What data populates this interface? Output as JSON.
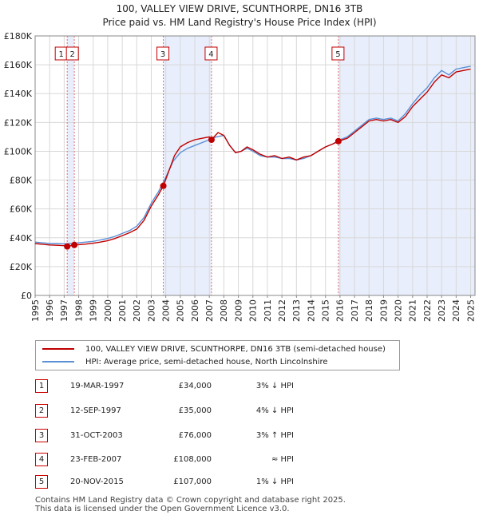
{
  "header": {
    "title_line1": "100, VALLEY VIEW DRIVE, SCUNTHORPE, DN16 3TB",
    "title_line2": "Price paid vs. HM Land Registry's House Price Index (HPI)"
  },
  "colors": {
    "property": "#c00000",
    "hpi": "#5b8fd6",
    "shade": "#e8eefb",
    "marker_line": "#e07070",
    "grid": "#d8d8d8"
  },
  "chart_data": {
    "type": "line",
    "title": "Price paid vs. HM Land Registry's House Price Index (HPI)",
    "xlabel": "",
    "ylabel": "",
    "xlim": [
      1995,
      2025.3
    ],
    "ylim": [
      0,
      180000
    ],
    "yticks": [
      0,
      20000,
      40000,
      60000,
      80000,
      100000,
      120000,
      140000,
      160000,
      180000
    ],
    "ytick_labels": [
      "£0",
      "£20K",
      "£40K",
      "£60K",
      "£80K",
      "£100K",
      "£120K",
      "£140K",
      "£160K",
      "£180K"
    ],
    "xticks": [
      1995,
      1996,
      1997,
      1998,
      1999,
      2000,
      2001,
      2002,
      2003,
      2004,
      2005,
      2006,
      2007,
      2008,
      2009,
      2010,
      2011,
      2012,
      2013,
      2014,
      2015,
      2016,
      2017,
      2018,
      2019,
      2020,
      2021,
      2022,
      2023,
      2024,
      2025
    ],
    "xtick_labels": [
      "1995",
      "1996",
      "1997",
      "1998",
      "1999",
      "2000",
      "2001",
      "2002",
      "2003",
      "2004",
      "2005",
      "2006",
      "2007",
      "2008",
      "2009",
      "2010",
      "2011",
      "2012",
      "2013",
      "2014",
      "2015",
      "2016",
      "2017",
      "2018",
      "2019",
      "2020",
      "2021",
      "2022",
      "2023",
      "2024",
      "2025"
    ],
    "shaded_ranges": [
      [
        1997.21,
        1997.7
      ],
      [
        2003.83,
        2007.15
      ],
      [
        2015.89,
        2025.3
      ]
    ],
    "series": [
      {
        "name": "100, VALLEY VIEW DRIVE, SCUNTHORPE, DN16 3TB (semi-detached house)",
        "x": [
          1995.0,
          1995.5,
          1996.0,
          1996.5,
          1997.0,
          1997.21,
          1997.5,
          1997.7,
          1998.0,
          1998.5,
          1999.0,
          1999.5,
          2000.0,
          2000.5,
          2001.0,
          2001.5,
          2002.0,
          2002.5,
          2003.0,
          2003.5,
          2003.83,
          2004.2,
          2004.6,
          2005.0,
          2005.5,
          2006.0,
          2006.5,
          2007.0,
          2007.15,
          2007.6,
          2008.0,
          2008.4,
          2008.8,
          2009.2,
          2009.6,
          2010.0,
          2010.5,
          2011.0,
          2011.5,
          2012.0,
          2012.5,
          2013.0,
          2013.5,
          2014.0,
          2014.5,
          2015.0,
          2015.5,
          2015.89,
          2016.5,
          2017.0,
          2017.5,
          2018.0,
          2018.5,
          2019.0,
          2019.5,
          2020.0,
          2020.5,
          2021.0,
          2021.5,
          2022.0,
          2022.5,
          2023.0,
          2023.5,
          2024.0,
          2024.5,
          2025.0
        ],
        "y": [
          36000,
          35500,
          35000,
          34800,
          34500,
          34000,
          34600,
          35000,
          35200,
          35600,
          36200,
          37000,
          38000,
          39500,
          41500,
          43500,
          46000,
          52000,
          62000,
          70000,
          76000,
          86000,
          97000,
          103000,
          106000,
          108000,
          109000,
          110000,
          108000,
          113000,
          111000,
          104000,
          99000,
          100000,
          103000,
          101000,
          98000,
          96000,
          97000,
          95000,
          96000,
          94000,
          96000,
          97000,
          100000,
          103000,
          105000,
          107000,
          109000,
          113000,
          117000,
          121000,
          122000,
          121000,
          122000,
          120000,
          124000,
          131000,
          136000,
          141000,
          148000,
          153000,
          151000,
          155000,
          156000,
          157000
        ]
      },
      {
        "name": "HPI: Average price, semi-detached house, North Lincolnshire",
        "x": [
          1995.0,
          1995.5,
          1996.0,
          1996.5,
          1997.0,
          1997.5,
          1998.0,
          1998.5,
          1999.0,
          1999.5,
          2000.0,
          2000.5,
          2001.0,
          2001.5,
          2002.0,
          2002.5,
          2003.0,
          2003.5,
          2004.0,
          2004.5,
          2005.0,
          2005.5,
          2006.0,
          2006.5,
          2007.0,
          2007.5,
          2008.0,
          2008.4,
          2008.8,
          2009.2,
          2009.6,
          2010.0,
          2010.5,
          2011.0,
          2011.5,
          2012.0,
          2012.5,
          2013.0,
          2013.5,
          2014.0,
          2014.5,
          2015.0,
          2015.5,
          2016.0,
          2016.5,
          2017.0,
          2017.5,
          2018.0,
          2018.5,
          2019.0,
          2019.5,
          2020.0,
          2020.5,
          2021.0,
          2021.5,
          2022.0,
          2022.5,
          2023.0,
          2023.5,
          2024.0,
          2024.5,
          2025.0
        ],
        "y": [
          37000,
          36500,
          36000,
          36000,
          35800,
          36000,
          36500,
          37000,
          37500,
          38500,
          39500,
          41000,
          43000,
          45000,
          48000,
          54000,
          64000,
          72000,
          82000,
          93000,
          99000,
          102000,
          104000,
          106000,
          108000,
          110000,
          111000,
          104000,
          99000,
          100000,
          102000,
          100000,
          97000,
          96000,
          96000,
          95000,
          95000,
          94000,
          95000,
          97000,
          100000,
          103000,
          105000,
          108000,
          110000,
          114000,
          118000,
          122000,
          123000,
          122000,
          123000,
          121000,
          126000,
          133000,
          139000,
          144000,
          151000,
          156000,
          153000,
          157000,
          158000,
          159000
        ]
      }
    ],
    "sale_markers": [
      {
        "label": "1",
        "x": 1997.21,
        "y": 34000
      },
      {
        "label": "2",
        "x": 1997.7,
        "y": 35000
      },
      {
        "label": "3",
        "x": 2003.83,
        "y": 76000
      },
      {
        "label": "4",
        "x": 2007.15,
        "y": 108000
      },
      {
        "label": "5",
        "x": 2015.89,
        "y": 107000
      }
    ]
  },
  "legend": {
    "property_label": "100, VALLEY VIEW DRIVE, SCUNTHORPE, DN16 3TB (semi-detached house)",
    "hpi_label": "HPI: Average price, semi-detached house, North Lincolnshire"
  },
  "sales": [
    {
      "num": "1",
      "date": "19-MAR-1997",
      "price": "£34,000",
      "hpi": "3% ↓ HPI"
    },
    {
      "num": "2",
      "date": "12-SEP-1997",
      "price": "£35,000",
      "hpi": "4% ↓ HPI"
    },
    {
      "num": "3",
      "date": "31-OCT-2003",
      "price": "£76,000",
      "hpi": "3% ↑ HPI"
    },
    {
      "num": "4",
      "date": "23-FEB-2007",
      "price": "£108,000",
      "hpi": "≈ HPI"
    },
    {
      "num": "5",
      "date": "20-NOV-2015",
      "price": "£107,000",
      "hpi": "1% ↓ HPI"
    }
  ],
  "footer": {
    "line1": "Contains HM Land Registry data © Crown copyright and database right 2025.",
    "line2": "This data is licensed under the Open Government Licence v3.0."
  }
}
